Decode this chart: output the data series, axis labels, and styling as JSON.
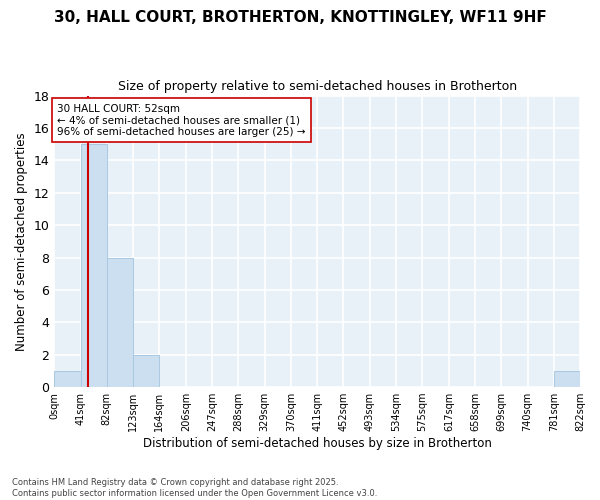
{
  "title": "30, HALL COURT, BROTHERTON, KNOTTINGLEY, WF11 9HF",
  "subtitle": "Size of property relative to semi-detached houses in Brotherton",
  "xlabel": "Distribution of semi-detached houses by size in Brotherton",
  "ylabel": "Number of semi-detached properties",
  "bin_edges": [
    0,
    41,
    82,
    123,
    164,
    206,
    247,
    288,
    329,
    370,
    411,
    452,
    493,
    534,
    575,
    617,
    658,
    699,
    740,
    781,
    822
  ],
  "bar_heights": [
    1,
    15,
    8,
    2,
    0,
    0,
    0,
    0,
    0,
    0,
    0,
    0,
    0,
    0,
    0,
    0,
    0,
    0,
    0,
    1
  ],
  "bar_color": "#ccdff0",
  "bar_edgecolor": "#aac8e0",
  "subject_value": 52,
  "subject_label": "30 HALL COURT: 52sqm",
  "pct_smaller": 4,
  "pct_larger": 96,
  "n_smaller": 1,
  "n_larger": 25,
  "redline_color": "#cc0000",
  "ylim": [
    0,
    18
  ],
  "yticks": [
    0,
    2,
    4,
    6,
    8,
    10,
    12,
    14,
    16,
    18
  ],
  "tick_labels": [
    "0sqm",
    "41sqm",
    "82sqm",
    "123sqm",
    "164sqm",
    "206sqm",
    "247sqm",
    "288sqm",
    "329sqm",
    "370sqm",
    "411sqm",
    "452sqm",
    "493sqm",
    "534sqm",
    "575sqm",
    "617sqm",
    "658sqm",
    "699sqm",
    "740sqm",
    "781sqm",
    "822sqm"
  ],
  "bg_color": "#e8f0f8",
  "grid_color": "#ffffff",
  "footnote": "Contains HM Land Registry data © Crown copyright and database right 2025.\nContains public sector information licensed under the Open Government Licence v3.0.",
  "annotation_box_edgecolor": "#cc0000",
  "annotation_box_facecolor": "#ffffff",
  "fig_bg": "#ffffff"
}
